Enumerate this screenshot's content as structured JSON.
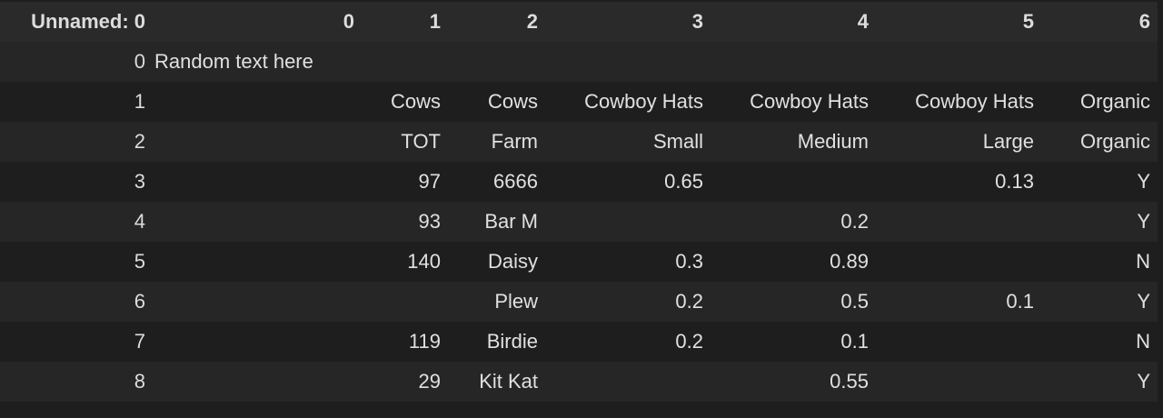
{
  "table": {
    "index_header": "Unnamed: 0",
    "columns": [
      "0",
      "1",
      "2",
      "3",
      "4",
      "5",
      "6"
    ],
    "rows": [
      {
        "index": "0",
        "cells": [
          "Random text here",
          "",
          "",
          "",
          "",
          "",
          ""
        ]
      },
      {
        "index": "1",
        "cells": [
          "",
          "Cows",
          "Cows",
          "Cowboy Hats",
          "Cowboy Hats",
          "Cowboy Hats",
          "Organic"
        ]
      },
      {
        "index": "2",
        "cells": [
          "",
          "TOT",
          "Farm",
          "Small",
          "Medium",
          "Large",
          "Organic"
        ]
      },
      {
        "index": "3",
        "cells": [
          "",
          "97",
          "6666",
          "0.65",
          "",
          "0.13",
          "Y"
        ]
      },
      {
        "index": "4",
        "cells": [
          "",
          "93",
          "Bar M",
          "",
          "0.2",
          "",
          "Y"
        ]
      },
      {
        "index": "5",
        "cells": [
          "",
          "140",
          "Daisy",
          "0.3",
          "0.89",
          "",
          "N"
        ]
      },
      {
        "index": "6",
        "cells": [
          "",
          "",
          "Plew",
          "0.2",
          "0.5",
          "0.1",
          "Y"
        ]
      },
      {
        "index": "7",
        "cells": [
          "",
          "119",
          "Birdie",
          "0.2",
          "0.1",
          "",
          "N"
        ]
      },
      {
        "index": "8",
        "cells": [
          "",
          "29",
          "Kit Kat",
          "",
          "0.55",
          "",
          "Y"
        ]
      }
    ]
  }
}
